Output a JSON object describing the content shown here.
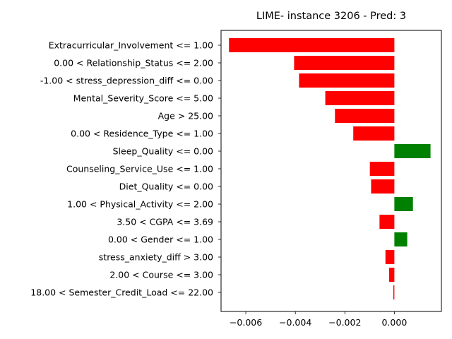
{
  "chart_data": {
    "type": "bar",
    "orientation": "horizontal",
    "title": "LIME- instance 3206 - Pred: 3",
    "xlabel": "",
    "ylabel": "",
    "xlim": [
      -0.007,
      0.0019
    ],
    "xticks": [
      {
        "value": -0.006,
        "label": "−0.006"
      },
      {
        "value": -0.004,
        "label": "−0.004"
      },
      {
        "value": -0.002,
        "label": "−0.002"
      },
      {
        "value": 0.0,
        "label": "0.000"
      }
    ],
    "grid": false,
    "categories": [
      "Extracurricular_Involvement <= 1.00",
      "0.00 < Relationship_Status <= 2.00",
      "-1.00 < stress_depression_diff <= 0.00",
      "Mental_Severity_Score <= 5.00",
      "Age > 25.00",
      "0.00 < Residence_Type <= 1.00",
      "Sleep_Quality <= 0.00",
      "Counseling_Service_Use <= 1.00",
      "Diet_Quality <= 0.00",
      "1.00 < Physical_Activity <= 2.00",
      "3.50 < CGPA <= 3.69",
      "0.00 < Gender <= 1.00",
      "stress_anxiety_diff > 3.00",
      "2.00 < Course <= 3.00",
      "18.00 < Semester_Credit_Load <= 22.00"
    ],
    "values": [
      -0.00668,
      -0.00405,
      -0.00385,
      -0.00279,
      -0.0024,
      -0.00166,
      0.00146,
      -0.00099,
      -0.00094,
      0.00075,
      -0.0006,
      0.00052,
      -0.00036,
      -0.00021,
      -4e-05
    ],
    "colors": {
      "positive": "#008000",
      "negative": "#ff0000"
    }
  }
}
